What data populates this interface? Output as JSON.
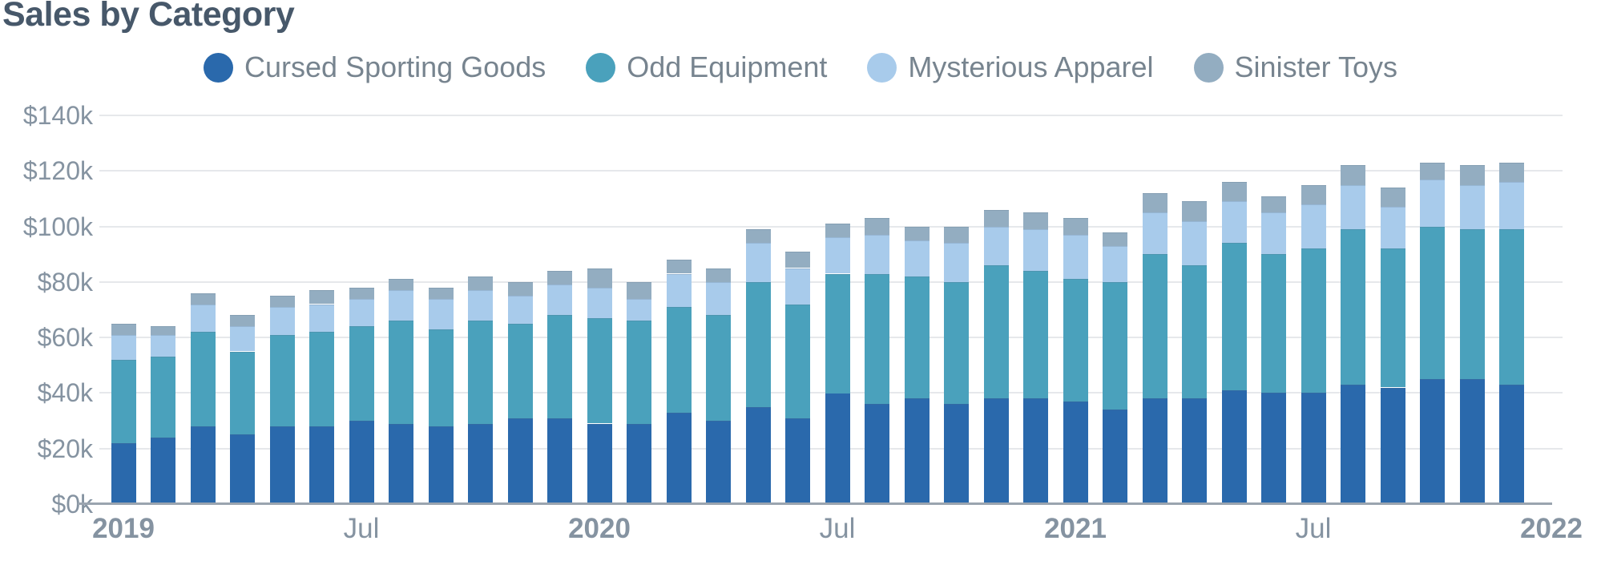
{
  "chart_data": {
    "type": "bar",
    "stacked": true,
    "title": "Sales by Category",
    "categories": [
      "2019-01",
      "2019-02",
      "2019-03",
      "2019-04",
      "2019-05",
      "2019-06",
      "2019-07",
      "2019-08",
      "2019-09",
      "2019-10",
      "2019-11",
      "2019-12",
      "2020-01",
      "2020-02",
      "2020-03",
      "2020-04",
      "2020-05",
      "2020-06",
      "2020-07",
      "2020-08",
      "2020-09",
      "2020-10",
      "2020-11",
      "2020-12",
      "2021-01",
      "2021-02",
      "2021-03",
      "2021-04",
      "2021-05",
      "2021-06",
      "2021-07",
      "2021-08",
      "2021-09",
      "2021-10",
      "2021-11",
      "2021-12"
    ],
    "value_unit": "thousand USD",
    "series": [
      {
        "name": "Cursed Sporting Goods",
        "color": "#2a69ac",
        "values": [
          22,
          24,
          28,
          25,
          28,
          28,
          30,
          29,
          28,
          29,
          31,
          31,
          29,
          29,
          33,
          30,
          35,
          31,
          40,
          36,
          38,
          36,
          38,
          38,
          37,
          34,
          38,
          38,
          41,
          40,
          40,
          43,
          42,
          45,
          45,
          43
        ]
      },
      {
        "name": "Odd Equipment",
        "color": "#4aa1bc",
        "values": [
          30,
          29,
          34,
          30,
          33,
          34,
          34,
          37,
          35,
          37,
          34,
          37,
          38,
          37,
          38,
          38,
          45,
          41,
          43,
          47,
          44,
          44,
          48,
          46,
          44,
          46,
          52,
          48,
          53,
          50,
          52,
          56,
          50,
          55,
          54,
          56
        ]
      },
      {
        "name": "Mysterious Apparel",
        "color": "#a8cbeb",
        "values": [
          9,
          8,
          10,
          9,
          10,
          10,
          10,
          11,
          11,
          11,
          10,
          11,
          11,
          8,
          12,
          12,
          14,
          13,
          13,
          14,
          13,
          14,
          14,
          15,
          16,
          13,
          15,
          16,
          15,
          15,
          16,
          16,
          15,
          17,
          16,
          17
        ]
      },
      {
        "name": "Sinister Toys",
        "color": "#93adc1",
        "values": [
          4,
          3,
          4,
          4,
          4,
          5,
          4,
          4,
          4,
          5,
          5,
          5,
          7,
          6,
          5,
          5,
          5,
          6,
          5,
          6,
          5,
          6,
          6,
          6,
          6,
          5,
          7,
          7,
          7,
          6,
          7,
          7,
          7,
          6,
          7,
          7
        ]
      }
    ],
    "y_axis": {
      "min": 0,
      "max": 140,
      "tick_step": 20,
      "tick_labels": [
        "$0k",
        "$20k",
        "$40k",
        "$60k",
        "$80k",
        "$100k",
        "$120k",
        "$140k"
      ],
      "gridlines": true
    },
    "x_axis": {
      "tick_marks": [
        {
          "bar_index": 0,
          "label": "2019",
          "bold": true
        },
        {
          "bar_index": 6,
          "label": "Jul",
          "bold": false
        },
        {
          "bar_index": 12,
          "label": "2020",
          "bold": true
        },
        {
          "bar_index": 18,
          "label": "Jul",
          "bold": false
        },
        {
          "bar_index": 24,
          "label": "2021",
          "bold": true
        },
        {
          "bar_index": 30,
          "label": "Jul",
          "bold": false
        },
        {
          "bar_index": 36,
          "label": "2022",
          "bold": true
        }
      ]
    },
    "legend": {
      "position": "top-center"
    },
    "style": {
      "title_color": "#47586a",
      "axis_label_color": "#8593a1",
      "legend_text_color": "#77848f",
      "gridline_color": "#e6e8eb",
      "axis_line_color": "#9aa4af",
      "background": "#ffffff"
    }
  }
}
